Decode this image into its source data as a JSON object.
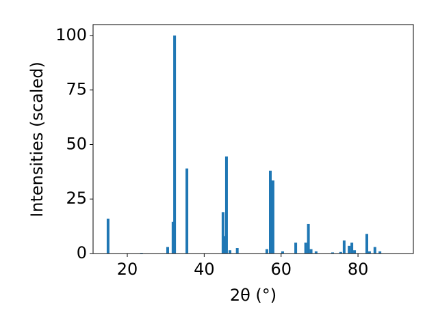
{
  "chart_data": {
    "type": "bar",
    "x_label": "2θ (°)",
    "y_label": "Intensities (scaled)",
    "x": [
      15.0,
      23.7,
      30.5,
      31.9,
      32.3,
      35.5,
      44.9,
      45.4,
      45.8,
      46.7,
      48.6,
      56.3,
      57.2,
      57.9,
      60.4,
      63.8,
      66.4,
      67.1,
      67.8,
      69.1,
      73.4,
      75.5,
      76.4,
      77.7,
      78.4,
      79.1,
      82.3,
      83.0,
      84.4,
      85.7
    ],
    "values": [
      16,
      0.3,
      3,
      14.5,
      100,
      39,
      19,
      8,
      44.5,
      1.5,
      2.5,
      2,
      38,
      33.5,
      1,
      5,
      5,
      13.5,
      2,
      1,
      0.5,
      0.7,
      6,
      3.5,
      5,
      1.5,
      9,
      1,
      3,
      1
    ],
    "color": "#1f77b4",
    "xlim": [
      11.1,
      94.4
    ],
    "ylim": [
      0,
      105
    ],
    "xticks": [
      20,
      40,
      60,
      80
    ],
    "yticks": [
      0,
      25,
      50,
      75,
      100
    ]
  }
}
